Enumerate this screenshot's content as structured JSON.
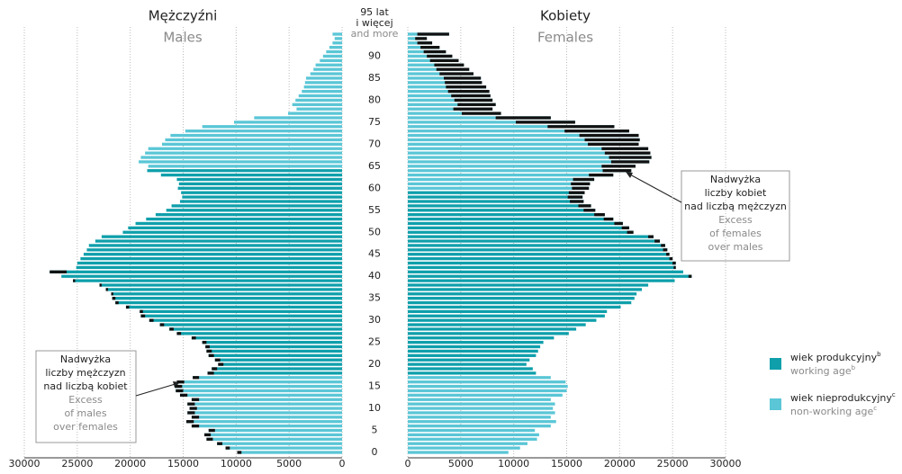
{
  "chart_data": {
    "type": "population_pyramid",
    "categories": [
      "0",
      null,
      null,
      null,
      null,
      "5",
      null,
      null,
      null,
      null,
      "10",
      null,
      null,
      null,
      null,
      "15",
      null,
      null,
      null,
      null,
      "20",
      null,
      null,
      null,
      null,
      "25",
      null,
      null,
      null,
      null,
      "30",
      null,
      null,
      null,
      null,
      "35",
      null,
      null,
      null,
      null,
      "40",
      null,
      null,
      null,
      null,
      "45",
      null,
      null,
      null,
      null,
      "50",
      null,
      null,
      null,
      null,
      "55",
      null,
      null,
      null,
      null,
      "60",
      null,
      null,
      null,
      null,
      "65",
      null,
      null,
      null,
      null,
      "70",
      null,
      null,
      null,
      null,
      "75",
      null,
      null,
      null,
      null,
      "80",
      null,
      null,
      null,
      null,
      "85",
      null,
      null,
      null,
      null,
      "90",
      null,
      null,
      null,
      null,
      null
    ],
    "top_age_label": [
      "95 lat",
      "i więcej"
    ],
    "top_age_label_en": "and more",
    "series": [
      {
        "name": "Mężczyźni",
        "name_en": "Males",
        "working_age": [
          18,
          64
        ],
        "values": [
          9900,
          11000,
          11800,
          12800,
          13000,
          12600,
          14200,
          14700,
          14200,
          14600,
          14400,
          14600,
          14200,
          15300,
          15700,
          15800,
          15600,
          14100,
          12700,
          12300,
          11700,
          12000,
          12600,
          12800,
          12900,
          13200,
          14200,
          15600,
          16300,
          17200,
          18200,
          19000,
          19100,
          20400,
          21400,
          21700,
          21800,
          22300,
          22900,
          25400,
          26500,
          27600,
          25100,
          25000,
          24700,
          24400,
          24100,
          23900,
          23300,
          22700,
          20700,
          20200,
          19500,
          18500,
          17600,
          16600,
          16100,
          15300,
          15100,
          15200,
          15500,
          15400,
          15600,
          17100,
          18400,
          18300,
          19200,
          19000,
          18600,
          18300,
          17000,
          16700,
          16200,
          14800,
          13200,
          10200,
          8300,
          5100,
          4300,
          4700,
          4400,
          4100,
          3800,
          3600,
          3500,
          3400,
          3000,
          2700,
          2500,
          2100,
          1800,
          1500,
          1200,
          900,
          700,
          900
        ]
      },
      {
        "name": "Kobiety",
        "name_en": "Females",
        "working_age": [
          18,
          59
        ],
        "values": [
          9500,
          10600,
          11300,
          12200,
          12400,
          12000,
          13500,
          14000,
          13500,
          13900,
          13700,
          13900,
          13500,
          14600,
          15000,
          15100,
          14900,
          13500,
          12100,
          11800,
          11200,
          11500,
          12100,
          12300,
          12500,
          12800,
          13800,
          15200,
          15900,
          16800,
          17800,
          18600,
          18800,
          20100,
          21100,
          21400,
          21600,
          22100,
          22700,
          25200,
          26800,
          26000,
          25300,
          25300,
          25000,
          24700,
          24500,
          24300,
          23800,
          23200,
          21300,
          20900,
          20300,
          19400,
          18600,
          17700,
          17300,
          16600,
          16500,
          16700,
          17100,
          17200,
          17600,
          19400,
          21100,
          21500,
          22800,
          23000,
          22900,
          22700,
          21800,
          21900,
          21800,
          20900,
          19500,
          15800,
          13500,
          8800,
          8000,
          8300,
          8000,
          7800,
          7700,
          7400,
          7000,
          6900,
          6200,
          5800,
          5300,
          4800,
          4200,
          3600,
          3000,
          2300,
          1800,
          3900
        ]
      }
    ],
    "colors": {
      "working": "#0e9fab",
      "nonworking": "#5ac6d6",
      "excess": "#111111"
    },
    "xlim": [
      0,
      30000
    ],
    "xticks": [
      0,
      5000,
      10000,
      15000,
      20000,
      25000,
      30000
    ],
    "grid": true,
    "annotations": [
      {
        "pl": [
          "Nadwyżka",
          "liczby mężczyzn",
          "nad liczbą kobiet"
        ],
        "en": [
          "Excess",
          "of males",
          "over females"
        ]
      },
      {
        "pl": [
          "Nadwyżka",
          "liczby kobiet",
          "nad liczbą mężczyzn"
        ],
        "en": [
          "Excess",
          "of females",
          "over males"
        ]
      }
    ],
    "legend": [
      {
        "pl": "wiek produkcyjny",
        "pl_note": "b",
        "en": "working age",
        "en_note": "b"
      },
      {
        "pl": "wiek nieprodukcyjny",
        "pl_note": "c",
        "en": "non-working age",
        "en_note": "c"
      }
    ]
  }
}
